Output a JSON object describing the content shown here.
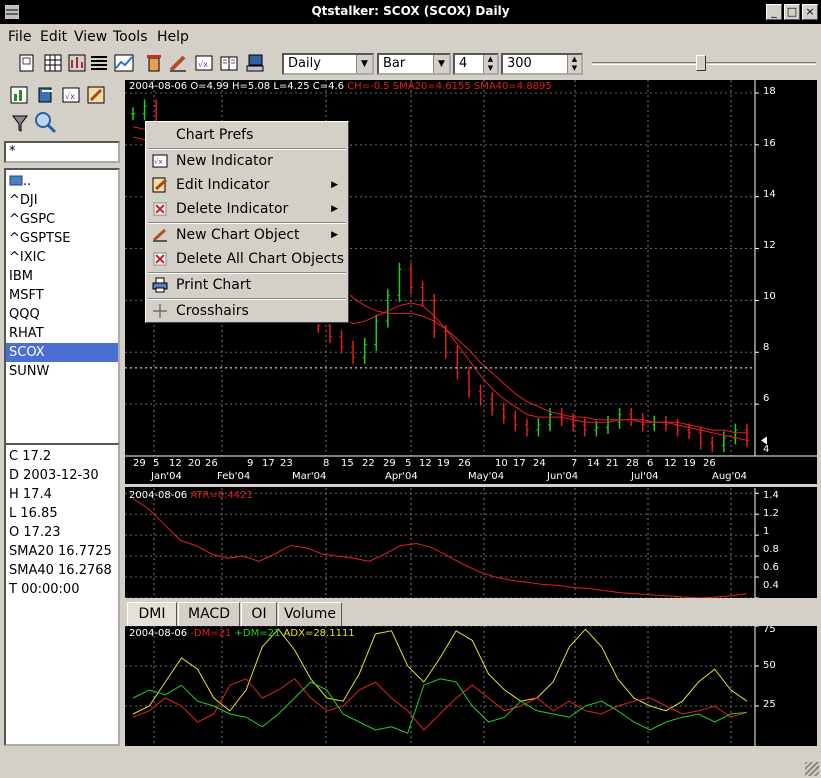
{
  "window": {
    "title": "Qtstalker: SCOX (SCOX) Daily"
  },
  "menu": [
    "File",
    "Edit",
    "View",
    "Tools",
    "Help"
  ],
  "toolbar": {
    "period": "Daily",
    "chart_style": "Bar",
    "bar_spacing": "4",
    "bars": "300"
  },
  "search": {
    "value": "*"
  },
  "symbols": [
    "..",
    "^DJI",
    "^GSPC",
    "^GSPTSE",
    "^IXIC",
    "IBM",
    "MSFT",
    "QQQ",
    "RHAT",
    "SCOX",
    "SUNW"
  ],
  "selected_symbol": "SCOX",
  "info": [
    "C 17.2",
    "D 2003-12-30",
    "H 17.4",
    "L 16.85",
    "O 17.23",
    "SMA20 16.7725",
    "SMA40 16.2768",
    "T 00:00:00"
  ],
  "main_chart": {
    "info_date": "2004-08-06",
    "info_ohlc": "O=4.99 H=5.08 L=4.25 C=4.6",
    "info_ind": "CH=-0.5 SMA20=4.6155 SMA40=4.8895",
    "y_ticks": [
      "18",
      "16",
      "14",
      "12",
      "10",
      "8",
      "6",
      "4"
    ],
    "day_ticks": [
      "29",
      "5",
      "12",
      "20",
      "26",
      "9",
      "17",
      "23",
      "8",
      "15",
      "22",
      "29",
      "5",
      "12",
      "19",
      "26",
      "10",
      "17",
      "24",
      "7",
      "14",
      "21",
      "28",
      "6",
      "12",
      "19",
      "26"
    ],
    "month_ticks": [
      "Jan'04",
      "Feb'04",
      "Mar'04",
      "Apr'04",
      "May'04",
      "Jun'04",
      "Jul'04",
      "Aug'04"
    ]
  },
  "atr_chart": {
    "info_date": "2004-08-06",
    "info_ind": "ATR=0.4421",
    "y_ticks": [
      "1.4",
      "1.2",
      "1",
      "0.8",
      "0.6",
      "0.4"
    ]
  },
  "tabs": [
    "DMI",
    "MACD",
    "OI",
    "Volume"
  ],
  "dmi_chart": {
    "info_date": "2004-08-06",
    "dm_minus": "-DM=21",
    "dm_plus": "+DM=21",
    "adx": "ADX=28.1111",
    "y_ticks": [
      "75",
      "50",
      "25"
    ]
  },
  "context_menu": {
    "chart_prefs": "Chart Prefs",
    "new_indicator": "New Indicator",
    "edit_indicator": "Edit Indicator",
    "delete_indicator": "Delete Indicator",
    "new_chart_object": "New Chart Object",
    "delete_all_chart_objects": "Delete All Chart Objects",
    "print_chart": "Print Chart",
    "crosshairs": "Crosshairs"
  },
  "chart_data": [
    {
      "type": "line",
      "title": "SCOX Daily",
      "ylim": [
        4,
        18.5
      ],
      "months": [
        "Jan'04",
        "Feb'04",
        "Mar'04",
        "Apr'04",
        "May'04",
        "Jun'04",
        "Jul'04",
        "Aug'04"
      ],
      "series": [
        {
          "name": "close",
          "values": [
            17.2,
            17.5,
            16.5,
            16.0,
            15.5,
            15.2,
            14.8,
            14.2,
            13.5,
            13.2,
            12.8,
            12.0,
            11.5,
            11.0,
            10.5,
            9.8,
            9.0,
            8.6,
            8.2,
            7.8,
            8.3,
            9.2,
            10.2,
            11.2,
            10.5,
            10.0,
            8.8,
            8.0,
            7.2,
            6.5,
            6.2,
            5.8,
            5.5,
            5.2,
            5.0,
            5.2,
            5.6,
            5.4,
            5.2,
            5.0,
            5.1,
            5.3,
            5.6,
            5.4,
            5.2,
            5.3,
            5.2,
            5.0,
            4.9,
            4.5,
            4.4,
            4.7,
            5.0,
            4.6
          ]
        },
        {
          "name": "SMA20",
          "values": [
            16.7,
            16.6,
            16.4,
            16.1,
            15.8,
            15.4,
            15.0,
            14.6,
            14.2,
            13.8,
            13.4,
            12.9,
            12.4,
            11.9,
            11.4,
            10.9,
            10.3,
            9.8,
            9.4,
            9.1,
            9.2,
            9.4,
            9.6,
            9.8,
            9.9,
            9.8,
            9.4,
            8.9,
            8.3,
            7.7,
            7.1,
            6.6,
            6.2,
            5.9,
            5.6,
            5.5,
            5.5,
            5.5,
            5.4,
            5.3,
            5.3,
            5.3,
            5.4,
            5.4,
            5.3,
            5.3,
            5.3,
            5.2,
            5.1,
            5.0,
            4.9,
            4.8,
            4.7,
            4.6
          ]
        },
        {
          "name": "SMA40",
          "values": [
            16.3,
            16.2,
            16.1,
            15.9,
            15.7,
            15.5,
            15.2,
            14.9,
            14.6,
            14.3,
            13.9,
            13.5,
            13.1,
            12.7,
            12.3,
            11.8,
            11.3,
            10.9,
            10.5,
            10.1,
            9.8,
            9.6,
            9.5,
            9.5,
            9.5,
            9.4,
            9.2,
            8.9,
            8.5,
            8.1,
            7.6,
            7.2,
            6.8,
            6.4,
            6.1,
            5.9,
            5.7,
            5.6,
            5.5,
            5.5,
            5.4,
            5.4,
            5.4,
            5.4,
            5.4,
            5.3,
            5.3,
            5.3,
            5.2,
            5.1,
            5.0,
            5.0,
            4.9,
            4.9
          ]
        }
      ]
    },
    {
      "type": "line",
      "title": "ATR",
      "ylim": [
        0.4,
        1.45
      ],
      "series": [
        {
          "name": "ATR",
          "values": [
            1.35,
            1.25,
            1.1,
            0.95,
            0.9,
            0.82,
            0.78,
            0.8,
            0.75,
            0.82,
            0.9,
            0.88,
            0.82,
            0.8,
            0.78,
            0.75,
            0.82,
            0.9,
            0.92,
            0.88,
            0.8,
            0.72,
            0.65,
            0.6,
            0.57,
            0.55,
            0.53,
            0.52,
            0.5,
            0.49,
            0.47,
            0.45,
            0.44,
            0.43,
            0.42,
            0.41,
            0.4,
            0.41,
            0.42,
            0.44
          ]
        }
      ]
    },
    {
      "type": "line",
      "title": "DMI",
      "ylim": [
        0,
        75
      ],
      "series": [
        {
          "name": "ADX",
          "values": [
            20,
            25,
            40,
            55,
            48,
            30,
            22,
            35,
            62,
            73,
            60,
            42,
            30,
            28,
            45,
            70,
            72,
            50,
            40,
            55,
            72,
            66,
            45,
            35,
            28,
            30,
            40,
            62,
            73,
            62,
            42,
            30,
            25,
            22,
            28,
            40,
            48,
            35,
            28
          ]
        },
        {
          "name": "-DM",
          "values": [
            18,
            22,
            30,
            25,
            15,
            20,
            38,
            42,
            30,
            35,
            42,
            30,
            22,
            25,
            35,
            40,
            30,
            22,
            10,
            20,
            30,
            38,
            30,
            22,
            25,
            30,
            22,
            28,
            22,
            20,
            25,
            28,
            30,
            25,
            20,
            22,
            25,
            18,
            21
          ]
        },
        {
          "name": "+DM",
          "values": [
            30,
            35,
            32,
            38,
            28,
            25,
            20,
            18,
            12,
            20,
            30,
            40,
            35,
            20,
            15,
            10,
            12,
            8,
            38,
            42,
            40,
            25,
            15,
            18,
            28,
            22,
            20,
            18,
            25,
            28,
            22,
            15,
            10,
            15,
            18,
            20,
            15,
            20,
            21
          ]
        }
      ]
    }
  ]
}
